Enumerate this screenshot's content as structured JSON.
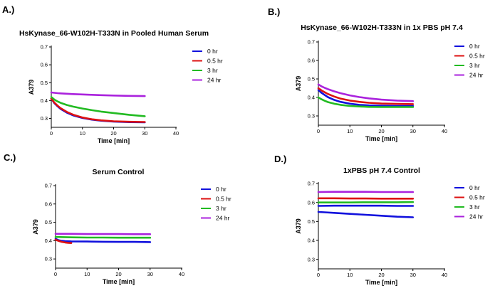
{
  "chart_data": [
    {
      "panel": "A.)",
      "type": "line",
      "title": "HsKynase_66-W102H-T333N in Pooled Human Serum",
      "xlabel": "Time [min]",
      "ylabel": "A379",
      "xlim": [
        0,
        40
      ],
      "ylim": [
        0.25,
        0.7
      ],
      "xticks": [
        0,
        10,
        20,
        30,
        40
      ],
      "yticks": [
        0.3,
        0.4,
        0.5,
        0.6,
        0.7
      ],
      "xtick_labels": [
        "0",
        "10",
        "20",
        "30",
        "40"
      ],
      "ytick_labels": [
        "0.3",
        "0.4",
        "0.5",
        "0.6",
        "0.7"
      ],
      "legend": "right",
      "series": [
        {
          "name": "0 hr",
          "color": "#1111dd",
          "x": [
            0,
            1,
            2,
            3,
            5,
            7,
            10,
            13,
            16,
            20,
            25,
            30
          ],
          "y": [
            0.41,
            0.385,
            0.368,
            0.353,
            0.332,
            0.317,
            0.302,
            0.293,
            0.287,
            0.282,
            0.279,
            0.278
          ]
        },
        {
          "name": "0.5 hr",
          "color": "#dd1111",
          "x": [
            0,
            1,
            2,
            3,
            5,
            7,
            10,
            13,
            16,
            20,
            25,
            30
          ],
          "y": [
            0.41,
            0.388,
            0.371,
            0.357,
            0.336,
            0.321,
            0.305,
            0.295,
            0.289,
            0.284,
            0.281,
            0.28
          ]
        },
        {
          "name": "3 hr",
          "color": "#22bb22",
          "x": [
            0,
            1,
            2,
            3,
            5,
            7,
            10,
            13,
            16,
            20,
            25,
            30
          ],
          "y": [
            0.42,
            0.405,
            0.395,
            0.387,
            0.375,
            0.366,
            0.355,
            0.346,
            0.338,
            0.33,
            0.32,
            0.312
          ]
        },
        {
          "name": "24 hr",
          "color": "#aa22dd",
          "x": [
            0,
            1,
            2,
            3,
            5,
            7,
            10,
            13,
            16,
            20,
            25,
            30
          ],
          "y": [
            0.445,
            0.443,
            0.441,
            0.44,
            0.438,
            0.436,
            0.434,
            0.432,
            0.43,
            0.428,
            0.426,
            0.425
          ]
        }
      ]
    },
    {
      "panel": "B.)",
      "type": "line",
      "title": "HsKynase_66-W102H-T333N in 1x PBS pH 7.4",
      "xlabel": "Time [min]",
      "ylabel": "A379",
      "xlim": [
        0,
        40
      ],
      "ylim": [
        0.25,
        0.7
      ],
      "xticks": [
        0,
        10,
        20,
        30,
        40
      ],
      "yticks": [
        0.3,
        0.4,
        0.5,
        0.6,
        0.7
      ],
      "xtick_labels": [
        "0",
        "10",
        "20",
        "30",
        "40"
      ],
      "ytick_labels": [
        "0.3",
        "0.4",
        "0.5",
        "0.6",
        "0.7"
      ],
      "legend": "right",
      "series": [
        {
          "name": "0 hr",
          "color": "#1111dd",
          "x": [
            0,
            1,
            2,
            3,
            5,
            7,
            10,
            13,
            16,
            20,
            25,
            30
          ],
          "y": [
            0.44,
            0.425,
            0.413,
            0.402,
            0.387,
            0.376,
            0.366,
            0.36,
            0.357,
            0.355,
            0.354,
            0.354
          ]
        },
        {
          "name": "0.5 hr",
          "color": "#dd1111",
          "x": [
            0,
            1,
            2,
            3,
            5,
            7,
            10,
            13,
            16,
            20,
            25,
            30
          ],
          "y": [
            0.45,
            0.438,
            0.428,
            0.419,
            0.405,
            0.394,
            0.383,
            0.376,
            0.371,
            0.367,
            0.365,
            0.364
          ]
        },
        {
          "name": "3 hr",
          "color": "#22bb22",
          "x": [
            0,
            1,
            2,
            3,
            5,
            7,
            10,
            13,
            16,
            20,
            25,
            30
          ],
          "y": [
            0.4,
            0.39,
            0.382,
            0.375,
            0.366,
            0.36,
            0.354,
            0.351,
            0.349,
            0.348,
            0.348,
            0.348
          ]
        },
        {
          "name": "24 hr",
          "color": "#aa22dd",
          "x": [
            0,
            1,
            2,
            3,
            5,
            7,
            10,
            13,
            16,
            20,
            25,
            30
          ],
          "y": [
            0.47,
            0.46,
            0.452,
            0.445,
            0.433,
            0.423,
            0.411,
            0.402,
            0.395,
            0.388,
            0.383,
            0.38
          ]
        }
      ]
    },
    {
      "panel": "C.)",
      "type": "line",
      "title": "Serum Control",
      "xlabel": "Time [min]",
      "ylabel": "A379",
      "xlim": [
        0,
        40
      ],
      "ylim": [
        0.25,
        0.7
      ],
      "xticks": [
        0,
        10,
        20,
        30,
        40
      ],
      "yticks": [
        0.3,
        0.4,
        0.5,
        0.6,
        0.7
      ],
      "xtick_labels": [
        "0",
        "10",
        "20",
        "30",
        "40"
      ],
      "ytick_labels": [
        "0.3",
        "0.4",
        "0.5",
        "0.6",
        "0.7"
      ],
      "legend": "right",
      "series": [
        {
          "name": "0 hr",
          "color": "#1111dd",
          "x": [
            0,
            1,
            2,
            3,
            5,
            10,
            15,
            20,
            25,
            30
          ],
          "y": [
            0.41,
            0.402,
            0.399,
            0.397,
            0.396,
            0.395,
            0.394,
            0.393,
            0.393,
            0.392
          ]
        },
        {
          "name": "0.5 hr",
          "color": "#dd1111",
          "x": [
            0,
            1,
            2,
            3,
            4,
            5
          ],
          "y": [
            0.405,
            0.398,
            0.393,
            0.39,
            0.388,
            0.387
          ]
        },
        {
          "name": "3 hr",
          "color": "#22bb22",
          "x": [
            0,
            5,
            10,
            15,
            20,
            25,
            30
          ],
          "y": [
            0.42,
            0.418,
            0.417,
            0.417,
            0.416,
            0.416,
            0.416
          ]
        },
        {
          "name": "24 hr",
          "color": "#aa22dd",
          "x": [
            0,
            5,
            10,
            15,
            20,
            25,
            30
          ],
          "y": [
            0.437,
            0.437,
            0.436,
            0.436,
            0.436,
            0.435,
            0.435
          ]
        }
      ]
    },
    {
      "panel": "D.)",
      "type": "line",
      "title": "1xPBS pH 7.4 Control",
      "xlabel": "Time [min]",
      "ylabel": "A379",
      "xlim": [
        0,
        40
      ],
      "ylim": [
        0.25,
        0.7
      ],
      "xticks": [
        0,
        10,
        20,
        30,
        40
      ],
      "yticks": [
        0.3,
        0.4,
        0.5,
        0.6,
        0.7
      ],
      "xtick_labels": [
        "0",
        "10",
        "20",
        "30",
        "40"
      ],
      "ytick_labels": [
        "0.3",
        "0.4",
        "0.5",
        "0.6",
        "0.7"
      ],
      "legend": "right",
      "series": [
        {
          "name": "0 hr",
          "color": "#1111dd",
          "x": [
            0,
            5,
            10,
            15,
            20,
            25,
            30
          ],
          "y": [
            0.582,
            0.583,
            0.583,
            0.583,
            0.583,
            0.582,
            0.582
          ]
        },
        {
          "name": "0.5 hr",
          "color": "#dd1111",
          "x": [
            0,
            5,
            10,
            15,
            20,
            25,
            30
          ],
          "y": [
            0.622,
            0.622,
            0.621,
            0.621,
            0.62,
            0.62,
            0.62
          ]
        },
        {
          "name": "3 hr",
          "color": "#22bb22",
          "x": [
            0,
            5,
            10,
            15,
            20,
            25,
            30
          ],
          "y": [
            0.6,
            0.6,
            0.6,
            0.601,
            0.601,
            0.601,
            0.602
          ]
        },
        {
          "name": "24 hr",
          "color": "#aa22dd",
          "x": [
            0,
            5,
            10,
            15,
            20,
            25,
            30
          ],
          "y": [
            0.655,
            0.656,
            0.656,
            0.656,
            0.655,
            0.655,
            0.655
          ]
        },
        {
          "name": "",
          "color": "#1111dd",
          "x": [
            0,
            2,
            5,
            10,
            15,
            20,
            25,
            30
          ],
          "y": [
            0.55,
            0.548,
            0.545,
            0.54,
            0.535,
            0.53,
            0.525,
            0.522
          ]
        }
      ]
    }
  ]
}
